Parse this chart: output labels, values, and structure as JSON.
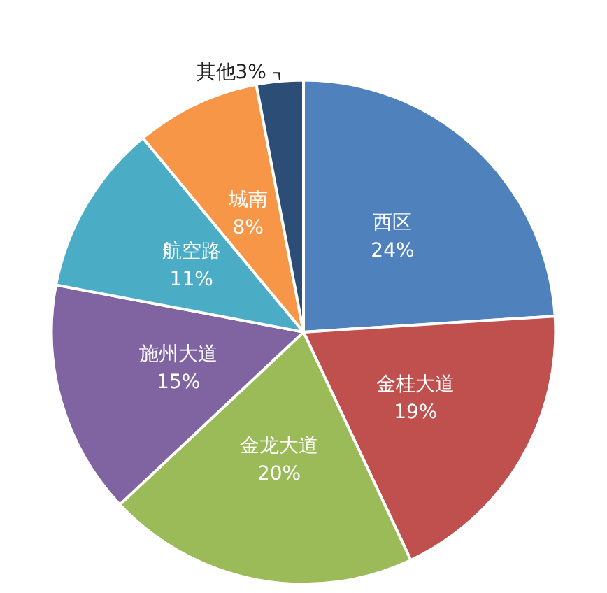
{
  "chart_data": {
    "type": "pie",
    "categories": [
      "西区",
      "金桂大道",
      "金龙大道",
      "施州大道",
      "航空路",
      "城南",
      "其他"
    ],
    "values": [
      24,
      19,
      20,
      15,
      11,
      8,
      3
    ],
    "colors": [
      "#4f81bd",
      "#c0504d",
      "#9bbb59",
      "#8064a2",
      "#4bacc6",
      "#f79646",
      "#2c4d75"
    ],
    "value_labels": [
      "24%",
      "19%",
      "20%",
      "15%",
      "11%",
      "8%",
      "3%"
    ]
  }
}
